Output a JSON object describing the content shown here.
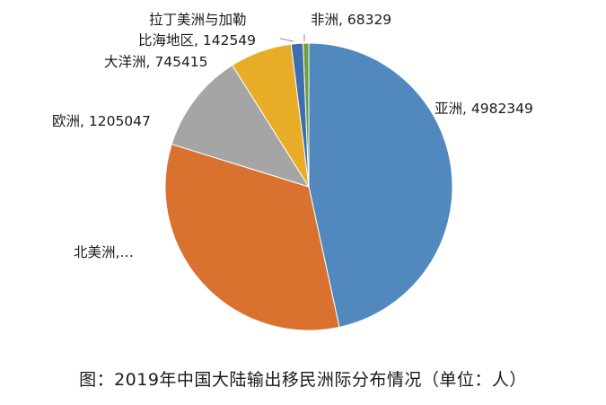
{
  "caption": "图：2019年中国大陆输出移民洲际分布情况（单位：人）",
  "chart_data": {
    "type": "pie",
    "title": "",
    "slices": [
      {
        "name": "亚洲",
        "value": 4982349,
        "label": "亚洲, 4982349",
        "color": "#5189bf"
      },
      {
        "name": "北美洲",
        "value": 3550000,
        "label": "北美洲,…",
        "color": "#d9722f"
      },
      {
        "name": "欧洲",
        "value": 1205047,
        "label": "欧洲, 1205047",
        "color": "#a5a5a5"
      },
      {
        "name": "大洋洲",
        "value": 745415,
        "label": "大洋洲, 745415",
        "color": "#e8ac27"
      },
      {
        "name": "拉丁美洲与加勒比海地区",
        "value": 142549,
        "label_lines": [
          "拉丁美洲与加勒",
          "比海地区, 142549"
        ],
        "color": "#3d6ead"
      },
      {
        "name": "非洲",
        "value": 68329,
        "label": "非洲, 68329",
        "color": "#6f9e3d"
      }
    ],
    "start": "12 o'clock, clockwise",
    "legend": "none"
  }
}
